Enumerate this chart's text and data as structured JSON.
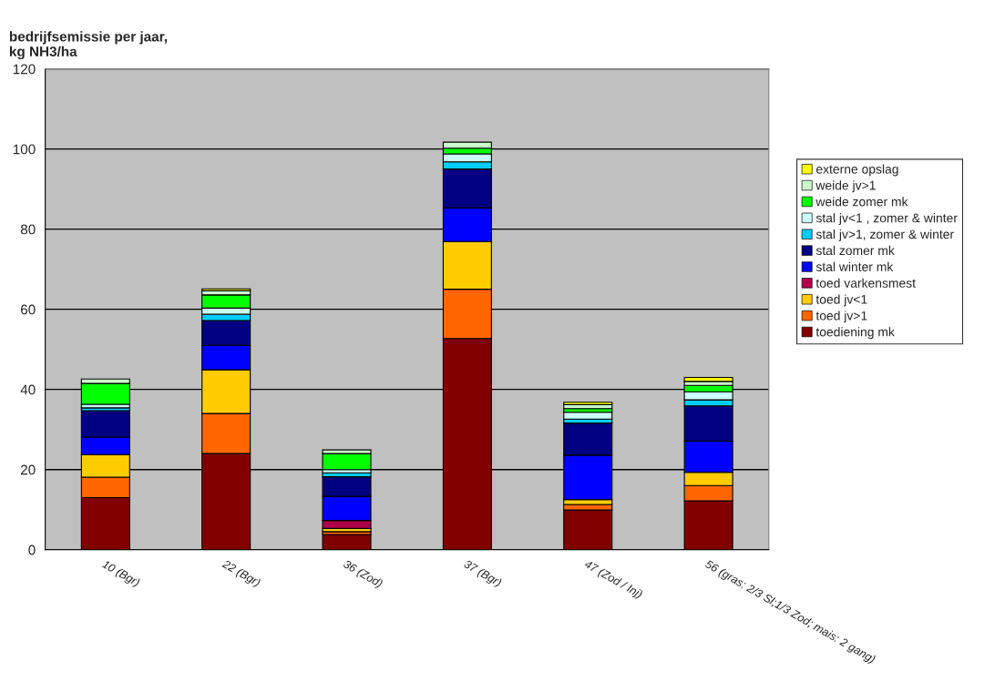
{
  "chart_data": {
    "type": "bar",
    "stacked": true,
    "ylabel": "bedrijfsemissie per jaar,\nkg NH3/ha",
    "categories": [
      "10 (Bgr)",
      "22 (Bgr)",
      "36 (Zod)",
      "37 (Bgr)",
      "47 (Zod / Inj)",
      "56 (gras: 2/3 Sl;1/3 Zod; mais: 2 gang)"
    ],
    "ylim": [
      0,
      120
    ],
    "yticks": [
      0,
      20,
      40,
      60,
      80,
      100,
      120
    ],
    "grid": "y",
    "legend": "right",
    "series": [
      {
        "name": "toediening mk",
        "color": "#800000",
        "values": [
          13.0,
          24.0,
          3.8,
          52.7,
          9.9,
          12.2
        ]
      },
      {
        "name": "toed jv>1",
        "color": "#ff6600",
        "values": [
          5.1,
          10.0,
          0.7,
          12.3,
          1.4,
          3.8
        ]
      },
      {
        "name": "toed jv<1",
        "color": "#ffcc00",
        "values": [
          5.6,
          10.9,
          0.8,
          11.9,
          1.2,
          3.3
        ]
      },
      {
        "name": "toed varkensmest",
        "color": "#b0004a",
        "values": [
          null,
          null,
          2.0,
          null,
          null,
          null
        ]
      },
      {
        "name": "stal winter mk",
        "color": "#0000ff",
        "values": [
          4.4,
          6.1,
          6.0,
          8.4,
          11.1,
          7.8
        ]
      },
      {
        "name": "stal zomer mk",
        "color": "#000080",
        "values": [
          6.6,
          6.2,
          4.9,
          9.7,
          8.0,
          8.8
        ]
      },
      {
        "name": "stal jv>1, zomer & winter",
        "color": "#00ccff",
        "values": [
          0.7,
          1.6,
          1.0,
          1.8,
          1.0,
          1.5
        ]
      },
      {
        "name": "stal jv<1 , zomer & winter",
        "color": "#ccffff",
        "values": [
          0.9,
          1.5,
          0.8,
          2.0,
          1.7,
          2.0
        ]
      },
      {
        "name": "weide zomer mk",
        "color": "#00ff00",
        "values": [
          5.2,
          3.3,
          4.0,
          1.4,
          0.9,
          1.6
        ]
      },
      {
        "name": "weide jv>1",
        "color": "#ccffcc",
        "values": [
          1.1,
          1.0,
          0.9,
          1.5,
          1.0,
          1.0
        ]
      },
      {
        "name": "externe opslag",
        "color": "#ffff00",
        "values": [
          null,
          0.5,
          null,
          null,
          0.6,
          1.0
        ]
      }
    ]
  }
}
